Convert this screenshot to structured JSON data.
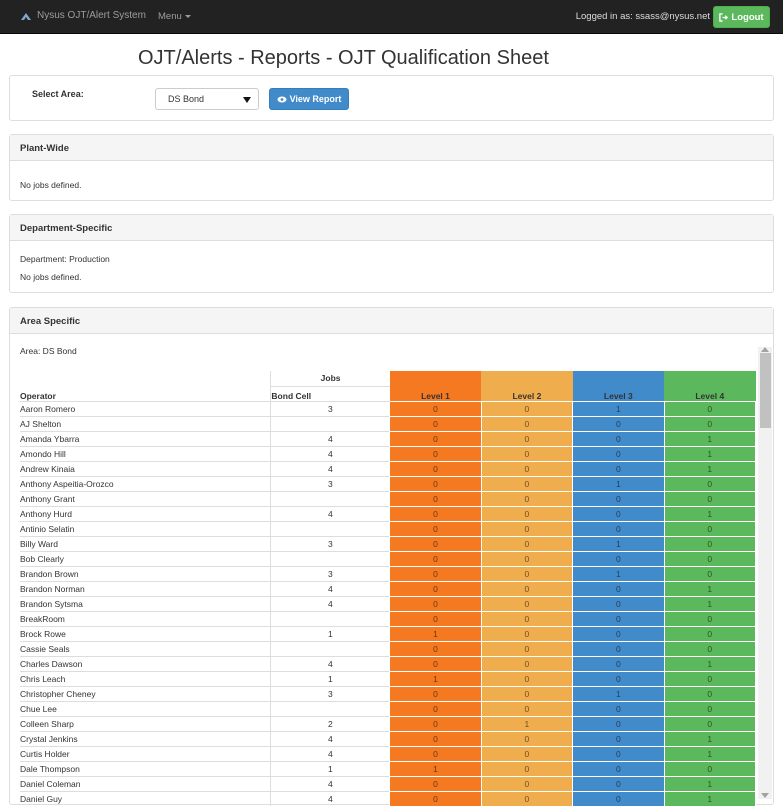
{
  "nav": {
    "brand": "Nysus OJT/Alert System",
    "menu": "Menu",
    "logged_in": "Logged in as: ssass@nysus.net",
    "logout": "Logout"
  },
  "title": "OJT/Alerts - Reports - OJT Qualification Sheet",
  "filter": {
    "label": "Select Area:",
    "selected": "DS Bond",
    "view_button": "View Report"
  },
  "plant_wide": {
    "heading": "Plant-Wide",
    "message": "No jobs defined."
  },
  "department": {
    "heading": "Department-Specific",
    "department": "Department: Production",
    "message": "No jobs defined."
  },
  "area": {
    "heading": "Area Specific",
    "area_label": "Area: DS Bond",
    "jobs_header": "Jobs",
    "operator_header": "Operator",
    "job_column": "Bond Cell",
    "levels": [
      "Level 1",
      "Level 2",
      "Level 3",
      "Level 4"
    ],
    "rows": [
      {
        "name": "Aaron Romero",
        "bond": "3",
        "l": [
          "0",
          "0",
          "1",
          "0"
        ]
      },
      {
        "name": "AJ Shelton",
        "bond": "",
        "l": [
          "0",
          "0",
          "0",
          "0"
        ]
      },
      {
        "name": "Amanda Ybarra",
        "bond": "4",
        "l": [
          "0",
          "0",
          "0",
          "1"
        ]
      },
      {
        "name": "Amondo Hill",
        "bond": "4",
        "l": [
          "0",
          "0",
          "0",
          "1"
        ]
      },
      {
        "name": "Andrew Kinaia",
        "bond": "4",
        "l": [
          "0",
          "0",
          "0",
          "1"
        ]
      },
      {
        "name": "Anthony Aspeitia-Orozco",
        "bond": "3",
        "l": [
          "0",
          "0",
          "1",
          "0"
        ]
      },
      {
        "name": "Anthony Grant",
        "bond": "",
        "l": [
          "0",
          "0",
          "0",
          "0"
        ]
      },
      {
        "name": "Anthony Hurd",
        "bond": "4",
        "l": [
          "0",
          "0",
          "0",
          "1"
        ]
      },
      {
        "name": "Antinio Selatin",
        "bond": "",
        "l": [
          "0",
          "0",
          "0",
          "0"
        ]
      },
      {
        "name": "Billy Ward",
        "bond": "3",
        "l": [
          "0",
          "0",
          "1",
          "0"
        ]
      },
      {
        "name": "Bob Clearly",
        "bond": "",
        "l": [
          "0",
          "0",
          "0",
          "0"
        ]
      },
      {
        "name": "Brandon Brown",
        "bond": "3",
        "l": [
          "0",
          "0",
          "1",
          "0"
        ]
      },
      {
        "name": "Brandon Norman",
        "bond": "4",
        "l": [
          "0",
          "0",
          "0",
          "1"
        ]
      },
      {
        "name": "Brandon Sytsma",
        "bond": "4",
        "l": [
          "0",
          "0",
          "0",
          "1"
        ]
      },
      {
        "name": "BreakRoom",
        "bond": "",
        "l": [
          "0",
          "0",
          "0",
          "0"
        ]
      },
      {
        "name": "Brock Rowe",
        "bond": "1",
        "l": [
          "1",
          "0",
          "0",
          "0"
        ]
      },
      {
        "name": "Cassie Seals",
        "bond": "",
        "l": [
          "0",
          "0",
          "0",
          "0"
        ]
      },
      {
        "name": "Charles Dawson",
        "bond": "4",
        "l": [
          "0",
          "0",
          "0",
          "1"
        ]
      },
      {
        "name": "Chris Leach",
        "bond": "1",
        "l": [
          "1",
          "0",
          "0",
          "0"
        ]
      },
      {
        "name": "Christopher Cheney",
        "bond": "3",
        "l": [
          "0",
          "0",
          "1",
          "0"
        ]
      },
      {
        "name": "Chue Lee",
        "bond": "",
        "l": [
          "0",
          "0",
          "0",
          "0"
        ]
      },
      {
        "name": "Colleen Sharp",
        "bond": "2",
        "l": [
          "0",
          "1",
          "0",
          "0"
        ]
      },
      {
        "name": "Crystal Jenkins",
        "bond": "4",
        "l": [
          "0",
          "0",
          "0",
          "1"
        ]
      },
      {
        "name": "Curtis Holder",
        "bond": "4",
        "l": [
          "0",
          "0",
          "0",
          "1"
        ]
      },
      {
        "name": "Dale Thompson",
        "bond": "1",
        "l": [
          "1",
          "0",
          "0",
          "0"
        ]
      },
      {
        "name": "Daniel Coleman",
        "bond": "4",
        "l": [
          "0",
          "0",
          "0",
          "1"
        ]
      },
      {
        "name": "Daniel Guy",
        "bond": "4",
        "l": [
          "0",
          "0",
          "0",
          "1"
        ]
      }
    ]
  },
  "colors": {
    "level1": "#f47920",
    "level2": "#f0ad4e",
    "level3": "#428bca",
    "level4": "#5cb85c",
    "navbar": "#222222"
  },
  "icons": {
    "brand": "nysus-logo-icon",
    "view": "eye-icon",
    "logout": "logout-icon",
    "select": "dropdown-arrow-icon"
  }
}
